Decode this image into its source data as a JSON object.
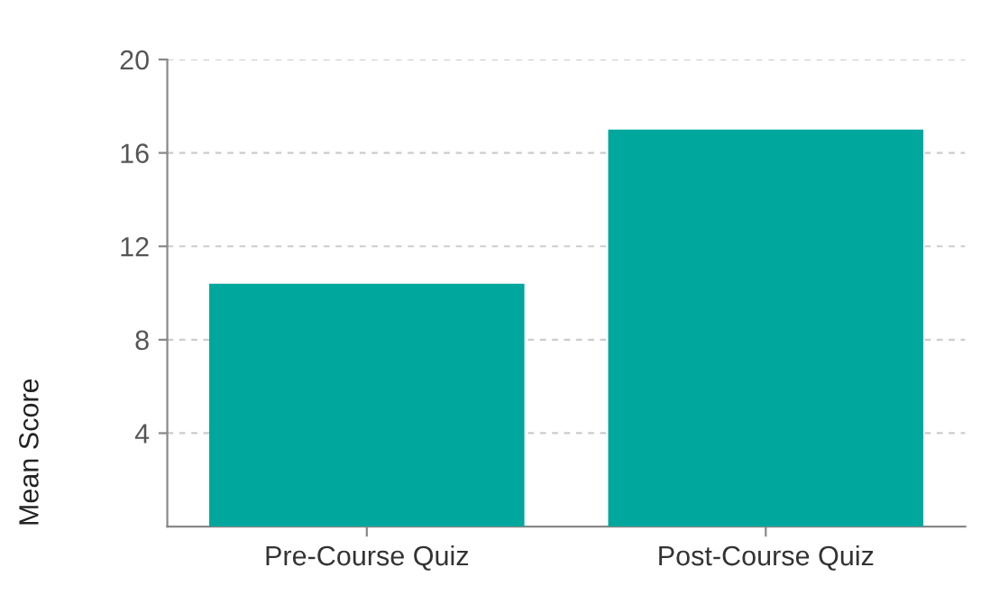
{
  "chart_data": {
    "type": "bar",
    "ylabel": "Mean Score",
    "categories": [
      "Pre-Course Quiz",
      "Post-Course Quiz"
    ],
    "values": [
      10.4,
      17.0
    ],
    "color": "#00a79d",
    "ylim": [
      0,
      20
    ],
    "yticks": [
      4,
      8,
      12,
      16,
      20
    ],
    "grid": "y"
  }
}
